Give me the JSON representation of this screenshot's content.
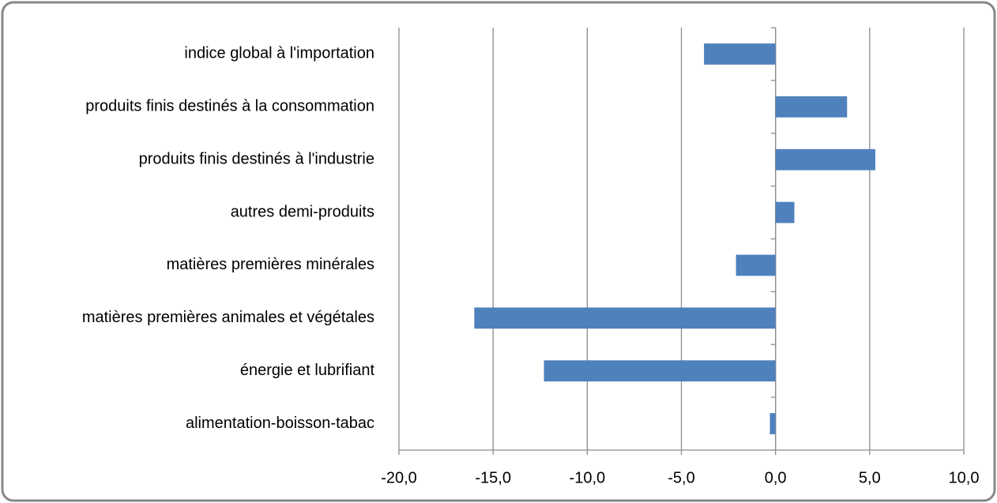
{
  "chart_data": {
    "type": "bar",
    "orientation": "horizontal",
    "categories": [
      "indice global à l'importation",
      "produits finis destinés à la consommation",
      "produits finis destinés à l'industrie",
      "autres demi-produits",
      "matières premières minérales",
      "matières premières animales et végétales",
      "énergie et lubrifiant",
      "alimentation-boisson-tabac"
    ],
    "values": [
      -3.8,
      3.8,
      5.3,
      1.0,
      -2.1,
      -16.0,
      -12.3,
      -0.3
    ],
    "color": "#4f81bd",
    "xlim": [
      -20,
      10
    ],
    "xticks": [
      {
        "value": -20,
        "label": "-20,0"
      },
      {
        "value": -15,
        "label": "-15,0"
      },
      {
        "value": -10,
        "label": "-10,0"
      },
      {
        "value": -5,
        "label": "-5,0"
      },
      {
        "value": 0,
        "label": "0,0"
      },
      {
        "value": 5,
        "label": "5,0"
      },
      {
        "value": 10,
        "label": "10,0"
      }
    ],
    "grid": true
  }
}
